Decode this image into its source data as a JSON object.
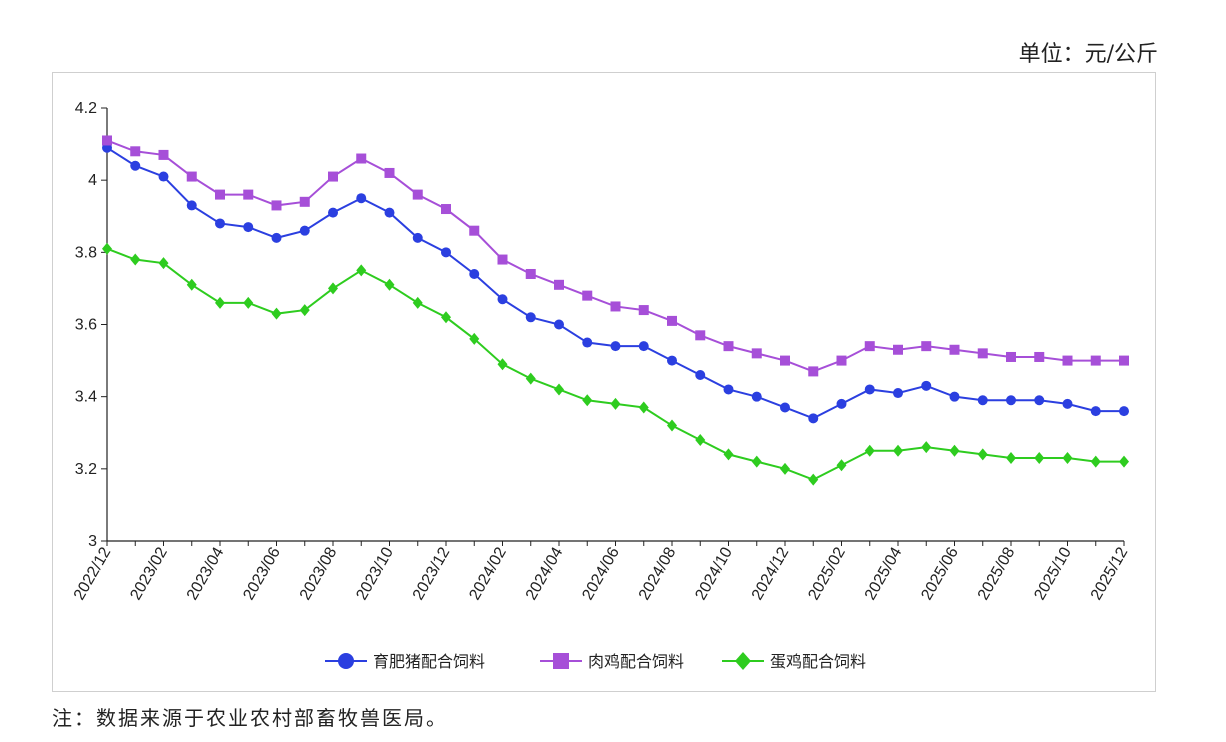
{
  "unit_label": "单位：元/公斤",
  "note": "注：数据来源于农业农村部畜牧兽医局。",
  "chart_data": {
    "type": "line",
    "title": "",
    "xlabel": "",
    "ylabel": "",
    "ylim": [
      3,
      4.2
    ],
    "yticks": [
      "3",
      "3.2",
      "3.4",
      "3.6",
      "3.8",
      "4",
      "4.2"
    ],
    "grid": false,
    "legend_position": "bottom",
    "x": [
      "2022/12",
      "2023/01",
      "2023/02",
      "2023/03",
      "2023/04",
      "2023/05",
      "2023/06",
      "2023/07",
      "2023/08",
      "2023/09",
      "2023/10",
      "2023/11",
      "2023/12",
      "2024/01",
      "2024/02",
      "2024/03",
      "2024/04",
      "2024/05",
      "2024/06",
      "2024/07",
      "2024/08",
      "2024/09",
      "2024/10",
      "2024/11",
      "2024/12",
      "2025/01",
      "2025/02",
      "2025/03",
      "2025/04",
      "2025/05",
      "2025/06",
      "2025/07",
      "2025/08",
      "2025/09",
      "2025/10",
      "2025/11",
      "2025/12"
    ],
    "xtick_labels": [
      "2022/12",
      "2023/02",
      "2023/04",
      "2023/06",
      "2023/08",
      "2023/10",
      "2023/12",
      "2024/02",
      "2024/04",
      "2024/06",
      "2024/08",
      "2024/10",
      "2024/12",
      "2025/02",
      "2025/04",
      "2025/06",
      "2025/08",
      "2025/10",
      "2025/12"
    ],
    "series": [
      {
        "name": "育肥猪配合饲料",
        "color": "#2b3fe0",
        "marker": "circle",
        "values": [
          4.09,
          4.04,
          4.01,
          3.93,
          3.88,
          3.87,
          3.84,
          3.86,
          3.91,
          3.95,
          3.91,
          3.84,
          3.8,
          3.74,
          3.67,
          3.62,
          3.6,
          3.55,
          3.54,
          3.54,
          3.5,
          3.46,
          3.42,
          3.4,
          3.37,
          3.34,
          3.38,
          3.42,
          3.41,
          3.43,
          3.4,
          3.39,
          3.39,
          3.39,
          3.38,
          3.36,
          3.36
        ]
      },
      {
        "name": "肉鸡配合饲料",
        "color": "#a64fd8",
        "marker": "square",
        "values": [
          4.11,
          4.08,
          4.07,
          4.01,
          3.96,
          3.96,
          3.93,
          3.94,
          4.01,
          4.06,
          4.02,
          3.96,
          3.92,
          3.86,
          3.78,
          3.74,
          3.71,
          3.68,
          3.65,
          3.64,
          3.61,
          3.57,
          3.54,
          3.52,
          3.5,
          3.47,
          3.5,
          3.54,
          3.53,
          3.54,
          3.53,
          3.52,
          3.51,
          3.51,
          3.5,
          3.5,
          3.5
        ]
      },
      {
        "name": "蛋鸡配合饲料",
        "color": "#2ecc1f",
        "marker": "diamond",
        "values": [
          3.81,
          3.78,
          3.77,
          3.71,
          3.66,
          3.66,
          3.63,
          3.64,
          3.7,
          3.75,
          3.71,
          3.66,
          3.62,
          3.56,
          3.49,
          3.45,
          3.42,
          3.39,
          3.38,
          3.37,
          3.32,
          3.28,
          3.24,
          3.22,
          3.2,
          3.17,
          3.21,
          3.25,
          3.25,
          3.26,
          3.25,
          3.24,
          3.23,
          3.23,
          3.23,
          3.22,
          3.22
        ]
      }
    ]
  }
}
